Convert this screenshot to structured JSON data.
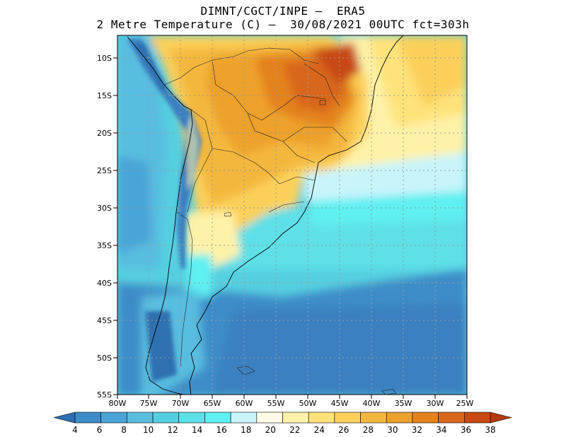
{
  "header": {
    "line1": "DIMNT/CGCT/INPE –  ERA5",
    "line2": "2 Metre Temperature (C) –  30/08/2021 00UTC fct=303h"
  },
  "map": {
    "lon_range": [
      -80,
      -25
    ],
    "lat_range": [
      -55,
      -7
    ],
    "lat_ticks": [
      "10S",
      "15S",
      "20S",
      "25S",
      "30S",
      "35S",
      "40S",
      "45S",
      "50S",
      "55S"
    ],
    "lon_ticks": [
      "80W",
      "75W",
      "70W",
      "65W",
      "60W",
      "55W",
      "50W",
      "45W",
      "40W",
      "35W",
      "30W",
      "25W"
    ]
  },
  "colorbar": {
    "labels": [
      "4",
      "6",
      "8",
      "10",
      "12",
      "14",
      "16",
      "18",
      "20",
      "22",
      "24",
      "26",
      "28",
      "30",
      "32",
      "34",
      "36",
      "38"
    ],
    "colors": [
      "#2e6fb0",
      "#3d8cc8",
      "#4aa4d8",
      "#59bde0",
      "#55cfe0",
      "#5ee0e8",
      "#5ff0f2",
      "#c8f4fa",
      "#fffbe6",
      "#fff2a8",
      "#ffe27a",
      "#fbd05a",
      "#f4b73e",
      "#eda12c",
      "#e4821e",
      "#d8661a",
      "#c84a12",
      "#b43a10"
    ]
  },
  "legend_colors": {
    "cold": "#2e6fb0",
    "cool": "#5ee0e8",
    "mild": "#fff2a8",
    "warm": "#f4b73e",
    "hot": "#c84a12"
  }
}
